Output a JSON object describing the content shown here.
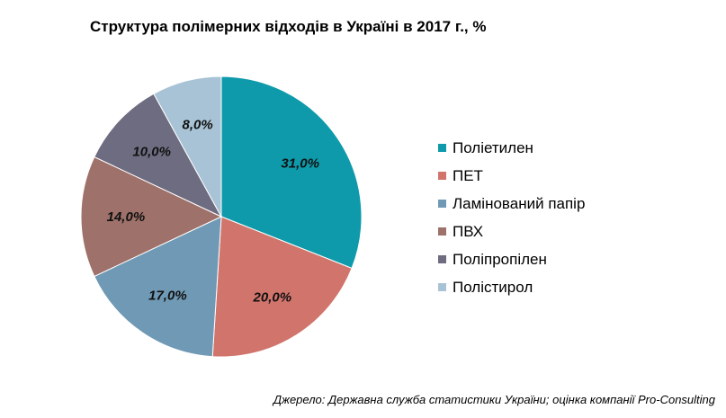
{
  "chart_data": {
    "type": "pie",
    "title": "Структура полімерних відходів в Україні в 2017 г., %",
    "legend_position": "right",
    "slices": [
      {
        "label": "Поліетилен",
        "value": 31.0,
        "display": "31,0%",
        "color": "#0E9AAA"
      },
      {
        "label": "ПЕТ",
        "value": 20.0,
        "display": "20,0%",
        "color": "#D1746C"
      },
      {
        "label": "Ламінований папір",
        "value": 17.0,
        "display": "17,0%",
        "color": "#6F99B4"
      },
      {
        "label": "ПВХ",
        "value": 14.0,
        "display": "14,0%",
        "color": "#9E716A"
      },
      {
        "label": "Поліпропілен",
        "value": 10.0,
        "display": "10,0%",
        "color": "#6D6C80"
      },
      {
        "label": "Полістирол",
        "value": 8.0,
        "display": "8,0%",
        "color": "#A8C3D5"
      }
    ]
  },
  "source_note": "Джерело: Державна служба статистики України; оцінка компанії Pro-Consulting"
}
